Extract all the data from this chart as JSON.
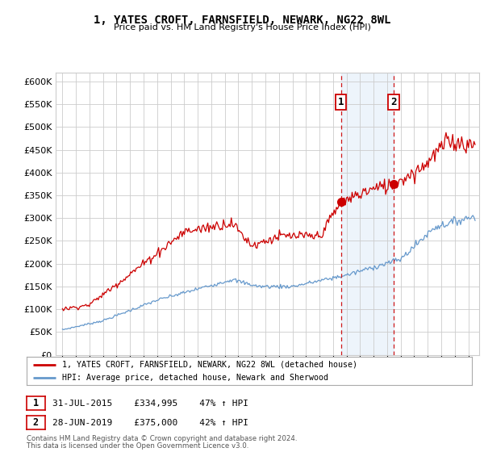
{
  "title": "1, YATES CROFT, FARNSFIELD, NEWARK, NG22 8WL",
  "subtitle": "Price paid vs. HM Land Registry's House Price Index (HPI)",
  "ylabel_ticks": [
    0,
    50000,
    100000,
    150000,
    200000,
    250000,
    300000,
    350000,
    400000,
    450000,
    500000,
    550000,
    600000
  ],
  "ylim": [
    0,
    620000
  ],
  "xlim_start": 1994.5,
  "xlim_end": 2025.8,
  "sale1_date": 2015.58,
  "sale1_price": 334995,
  "sale2_date": 2019.5,
  "sale2_price": 375000,
  "sale1_label": "1",
  "sale2_label": "2",
  "legend_line1": "1, YATES CROFT, FARNSFIELD, NEWARK, NG22 8WL (detached house)",
  "legend_line2": "HPI: Average price, detached house, Newark and Sherwood",
  "red_color": "#cc0000",
  "blue_color": "#6699cc",
  "shaded_color": "#cce0f5",
  "vline_color": "#cc0000",
  "footnote1": "Contains HM Land Registry data © Crown copyright and database right 2024.",
  "footnote2": "This data is licensed under the Open Government Licence v3.0.",
  "background_color": "#ffffff",
  "grid_color": "#cccccc",
  "sale1_row": "31-JUL-2015",
  "sale1_price_str": "£334,995",
  "sale1_hpi": "47% ↑ HPI",
  "sale2_row": "28-JUN-2019",
  "sale2_price_str": "£375,000",
  "sale2_hpi": "42% ↑ HPI"
}
